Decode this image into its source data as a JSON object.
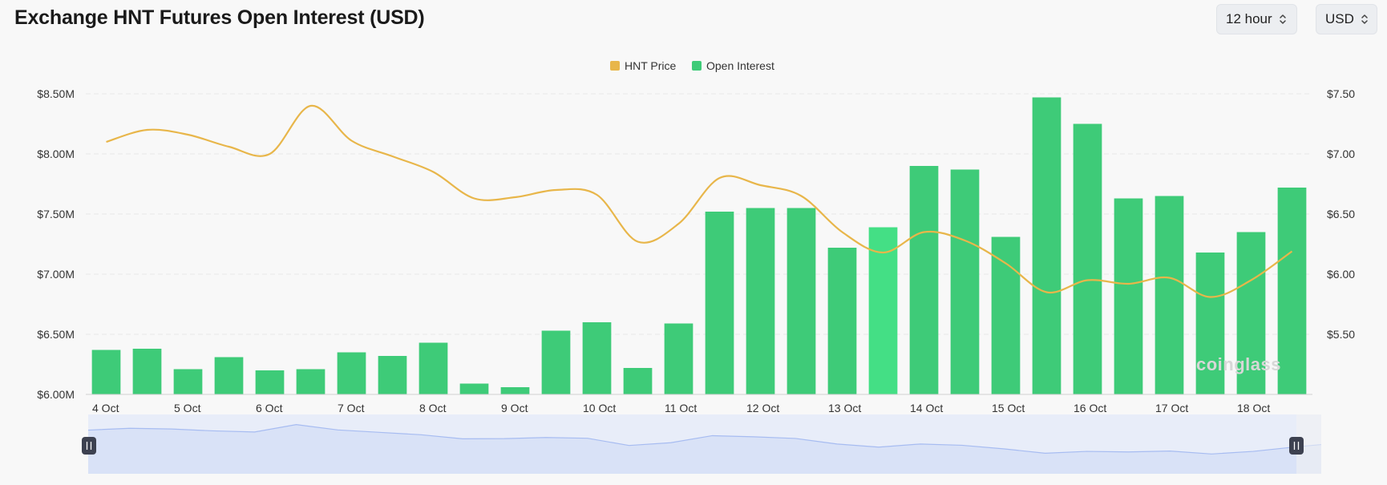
{
  "header": {
    "title": "Exchange HNT Futures Open Interest (USD)",
    "interval_value": "12 hour",
    "currency_value": "USD"
  },
  "watermark": {
    "text": "coinglass"
  },
  "colors": {
    "price_line": "#e8b64a",
    "bars": "#3ecb78",
    "bar_highlight": "#44df85",
    "navigator_fill": "#d9e2f7",
    "navigator_line": "#a7bcf1"
  },
  "chart_data": {
    "type": "bar",
    "title": "Exchange HNT Futures Open Interest (USD)",
    "legend": {
      "position": "top-center",
      "entries": [
        "HNT Price",
        "Open Interest"
      ]
    },
    "x_ticks": [
      "4 Oct",
      "5 Oct",
      "6 Oct",
      "7 Oct",
      "8 Oct",
      "9 Oct",
      "10 Oct",
      "11 Oct",
      "12 Oct",
      "13 Oct",
      "14 Oct",
      "15 Oct",
      "16 Oct",
      "17 Oct",
      "18 Oct"
    ],
    "y_left": {
      "ticks": [
        "$6.00M",
        "$6.50M",
        "$7.00M",
        "$7.50M",
        "$8.00M",
        "$8.50M"
      ],
      "range": [
        6.0,
        8.5
      ],
      "unit": "M USD"
    },
    "y_right": {
      "ticks": [
        "$5.50",
        "$6.00",
        "$6.50",
        "$7.00",
        "$7.50"
      ],
      "range": [
        5.0,
        7.5
      ],
      "unit": "USD"
    },
    "grid": true,
    "series": [
      {
        "name": "Open Interest",
        "type": "bar",
        "axis": "left",
        "values": [
          6.37,
          6.38,
          6.21,
          6.31,
          6.2,
          6.21,
          6.35,
          6.32,
          6.43,
          6.09,
          6.06,
          6.53,
          6.6,
          6.22,
          6.59,
          7.52,
          7.55,
          7.55,
          7.22,
          7.39,
          7.9,
          7.87,
          7.31,
          8.47,
          8.25,
          7.63,
          7.65,
          7.18,
          7.35,
          7.72
        ],
        "highlight_index": 19
      },
      {
        "name": "HNT Price",
        "type": "line",
        "axis": "right",
        "values": [
          7.1,
          7.2,
          7.16,
          7.06,
          7.0,
          7.4,
          7.11,
          6.98,
          6.85,
          6.63,
          6.64,
          6.7,
          6.66,
          6.27,
          6.42,
          6.8,
          6.74,
          6.65,
          6.35,
          6.18,
          6.35,
          6.28,
          6.09,
          5.85,
          5.95,
          5.92,
          5.97,
          5.81,
          5.95,
          6.19
        ]
      }
    ]
  },
  "navigator": {
    "slider_range": [
      "4 Oct",
      "18 Oct"
    ]
  }
}
